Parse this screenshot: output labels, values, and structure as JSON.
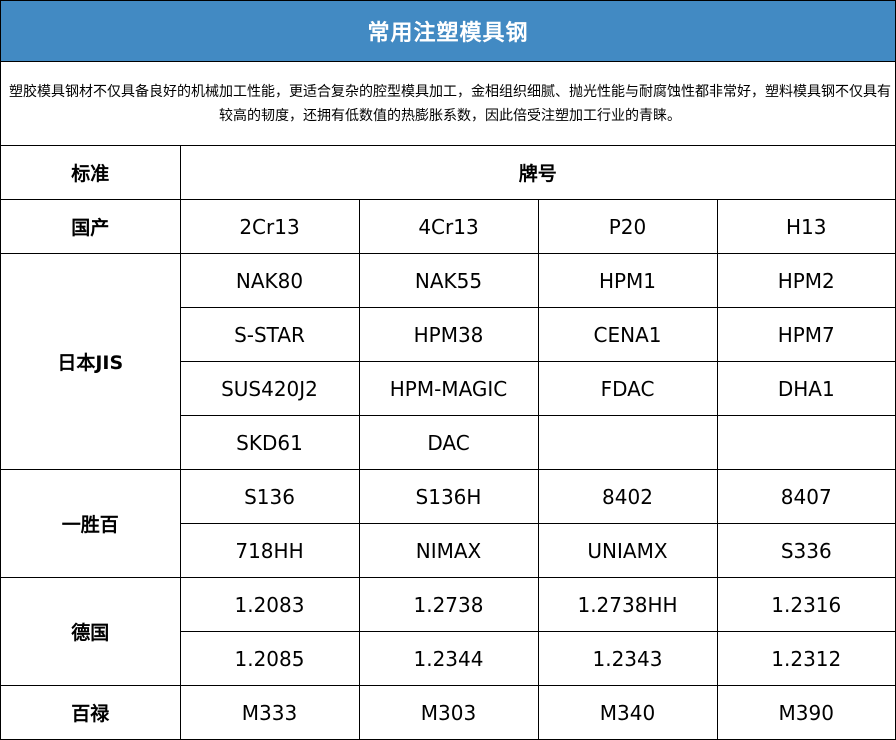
{
  "title": "常用注塑模具钢",
  "description": "塑胶模具钢材不仅具备良好的机械加工性能，更适合复杂的腔型模具加工，金相组织细腻、抛光性能与耐腐蚀性都非常好，塑料模具钢不仅具有较高的韧度，还拥有低数值的热膨胀系数，因此倍受注塑加工行业的青睐。",
  "table": {
    "header": {
      "standard": "标准",
      "grade": "牌号"
    },
    "groups": [
      {
        "standard": "国产",
        "rows": [
          [
            "2Cr13",
            "4Cr13",
            "P20",
            "H13"
          ]
        ]
      },
      {
        "standard": "日本JIS",
        "rows": [
          [
            "NAK80",
            "NAK55",
            "HPM1",
            "HPM2"
          ],
          [
            "S-STAR",
            "HPM38",
            "CENA1",
            "HPM7"
          ],
          [
            "SUS420J2",
            "HPM-MAGIC",
            "FDAC",
            "DHA1"
          ],
          [
            "SKD61",
            "DAC",
            "",
            ""
          ]
        ]
      },
      {
        "standard": "一胜百",
        "rows": [
          [
            "S136",
            "S136H",
            "8402",
            "8407"
          ],
          [
            "718HH",
            "NIMAX",
            "UNIAMX",
            "S336"
          ]
        ]
      },
      {
        "standard": "德国",
        "rows": [
          [
            "1.2083",
            "1.2738",
            "1.2738HH",
            "1.2316"
          ],
          [
            "1.2085",
            "1.2344",
            "1.2343",
            "1.2312"
          ]
        ]
      },
      {
        "standard": "百禄",
        "rows": [
          [
            "M333",
            "M303",
            "M340",
            "M390"
          ]
        ]
      }
    ]
  }
}
